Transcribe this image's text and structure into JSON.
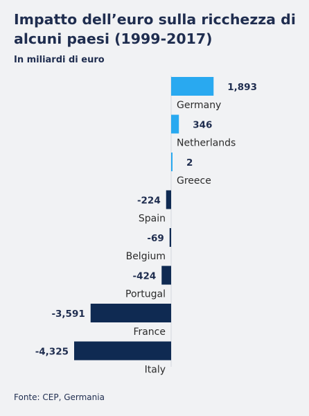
{
  "header": {
    "title": "Impatto dell’euro sulla ricchezza di alcuni paesi (1999-2017)",
    "subtitle": "In miliardi di euro"
  },
  "footer": {
    "source": "Fonte: CEP, Germania"
  },
  "colors": {
    "positive": "#29a9f0",
    "negative": "#0f2a52",
    "background": "#f1f2f4",
    "text": "#1f2d4f"
  },
  "chart_data": {
    "type": "bar",
    "orientation": "horizontal",
    "title": "Impatto dell’euro sulla ricchezza di alcuni paesi (1999-2017)",
    "subtitle": "In miliardi di euro",
    "categories": [
      "Germany",
      "Netherlands",
      "Greece",
      "Spain",
      "Belgium",
      "Portugal",
      "France",
      "Italy"
    ],
    "values": [
      1893,
      346,
      2,
      -224,
      -69,
      -424,
      -3591,
      -4325
    ],
    "value_labels": [
      "1,893",
      "346",
      "2",
      "-224",
      "-69",
      "-424",
      "-3,591",
      "-4,325"
    ],
    "xlim": [
      -4325,
      1893
    ],
    "grid": false,
    "legend": "none"
  }
}
